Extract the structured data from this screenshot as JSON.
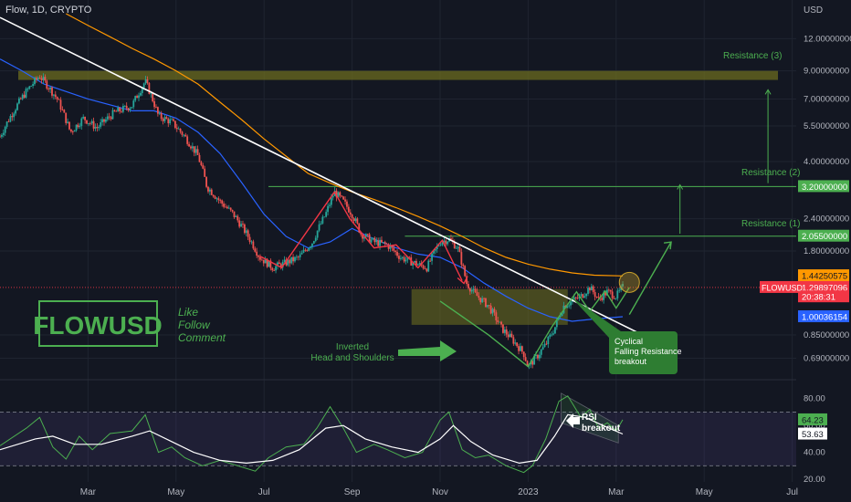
{
  "header": {
    "symbol_info": "Flow, 1D, CRYPTO",
    "currency": "USD"
  },
  "watermark": "FLOWUSD",
  "cta": [
    "Like",
    "Follow",
    "Comment"
  ],
  "annotations": {
    "resistance_3": "Resistance (3)",
    "resistance_2": "Resistance (2)",
    "resistance_1": "Resistance (1)",
    "ihs": [
      "Inverted",
      "Head and Shoulders"
    ],
    "cyclical": [
      "Cyclical",
      "Falling Resistance",
      "breakout"
    ],
    "rsi": [
      "RSI",
      "breakout"
    ]
  },
  "price_axis": {
    "ticks": [
      {
        "label": "12.00000000",
        "value": 12.0
      },
      {
        "label": "9.00000000",
        "value": 9.0
      },
      {
        "label": "7.00000000",
        "value": 7.0
      },
      {
        "label": "5.50000000",
        "value": 5.5
      },
      {
        "label": "4.00000000",
        "value": 4.0
      },
      {
        "label": "2.40000000",
        "value": 2.4
      },
      {
        "label": "1.80000000",
        "value": 1.8
      },
      {
        "label": "0.85000000",
        "value": 0.85
      },
      {
        "label": "0.69000000",
        "value": 0.69
      }
    ],
    "badges": [
      {
        "name": "badge-resistance-2",
        "text": "3.20000000",
        "value": 3.2,
        "color": "#4caf50",
        "fg": "#ffffff"
      },
      {
        "name": "badge-resistance-1",
        "text": "2.05500000",
        "value": 2.055,
        "color": "#4caf50",
        "fg": "#ffffff"
      },
      {
        "name": "badge-ma-orange",
        "text": "1.44250575",
        "value": 1.4425,
        "color": "#ff9800",
        "fg": "#131722"
      },
      {
        "name": "badge-last-price",
        "text": "1.29897096",
        "value": 1.299,
        "color": "#f23645",
        "fg": "#ffffff"
      },
      {
        "name": "badge-countdown",
        "text": "20:38:31",
        "value": 1.195,
        "color": "#f23645",
        "fg": "#ffffff"
      },
      {
        "name": "badge-ma-blue",
        "text": "1.00036154",
        "value": 1.0,
        "color": "#2962ff",
        "fg": "#ffffff"
      }
    ],
    "symbol_tag": "FLOWUSD"
  },
  "rsi_axis": {
    "ticks": [
      {
        "label": "80.00",
        "value": 80
      },
      {
        "label": "60.00",
        "value": 60
      },
      {
        "label": "40.00",
        "value": 40
      },
      {
        "label": "20.00",
        "value": 20
      }
    ],
    "badges": [
      {
        "text": "64.23",
        "value": 64.23,
        "color": "#4caf50",
        "fg": "#131722"
      },
      {
        "text": "53.63",
        "value": 53.63,
        "color": "#ffffff",
        "fg": "#131722"
      }
    ]
  },
  "time_axis": [
    {
      "label": "Mar",
      "month": 2
    },
    {
      "label": "May",
      "month": 4
    },
    {
      "label": "Jul",
      "month": 6
    },
    {
      "label": "Sep",
      "month": 8
    },
    {
      "label": "Nov",
      "month": 10
    },
    {
      "label": "2023",
      "month": 12
    },
    {
      "label": "Mar",
      "month": 14
    },
    {
      "label": "May",
      "month": 16
    },
    {
      "label": "Jul",
      "month": 18
    }
  ],
  "colors": {
    "bg": "#131722",
    "up": "#26a69a",
    "down": "#ef5350",
    "ma_blue": "#2962ff",
    "ma_orange": "#ff9800",
    "accent_green": "#4caf50",
    "trendline": "#ffffff"
  },
  "chart_data": [
    {
      "type": "candlestick",
      "symbol": "FLOWUSD",
      "timeframe": "1D",
      "scale": "log",
      "ylim": [
        0.5,
        15
      ],
      "price_path": [
        [
          0.0,
          5.0
        ],
        [
          0.6,
          7.5
        ],
        [
          0.9,
          8.6
        ],
        [
          1.3,
          7.0
        ],
        [
          1.6,
          5.2
        ],
        [
          1.9,
          5.9
        ],
        [
          2.2,
          5.4
        ],
        [
          2.6,
          6.2
        ],
        [
          3.0,
          6.6
        ],
        [
          3.3,
          8.2
        ],
        [
          3.6,
          6.0
        ],
        [
          3.9,
          5.7
        ],
        [
          4.2,
          5.0
        ],
        [
          4.5,
          4.2
        ],
        [
          4.7,
          3.2
        ],
        [
          5.0,
          2.8
        ],
        [
          5.3,
          2.5
        ],
        [
          5.6,
          2.1
        ],
        [
          5.9,
          1.7
        ],
        [
          6.2,
          1.55
        ],
        [
          6.5,
          1.62
        ],
        [
          6.8,
          1.7
        ],
        [
          7.1,
          1.95
        ],
        [
          7.4,
          2.5
        ],
        [
          7.6,
          3.05
        ],
        [
          7.8,
          2.8
        ],
        [
          8.0,
          2.5
        ],
        [
          8.2,
          2.1
        ],
        [
          8.5,
          1.95
        ],
        [
          8.8,
          1.9
        ],
        [
          9.1,
          1.7
        ],
        [
          9.4,
          1.62
        ],
        [
          9.7,
          1.55
        ],
        [
          10.0,
          1.95
        ],
        [
          10.2,
          2.0
        ],
        [
          10.4,
          1.85
        ],
        [
          10.6,
          1.35
        ],
        [
          10.8,
          1.22
        ],
        [
          11.1,
          1.1
        ],
        [
          11.4,
          0.9
        ],
        [
          11.6,
          0.83
        ],
        [
          11.9,
          0.72
        ],
        [
          12.0,
          0.64
        ],
        [
          12.2,
          0.7
        ],
        [
          12.4,
          0.78
        ],
        [
          12.6,
          0.9
        ],
        [
          12.8,
          1.1
        ],
        [
          13.0,
          1.15
        ],
        [
          13.2,
          1.2
        ],
        [
          13.4,
          1.3
        ],
        [
          13.6,
          1.17
        ],
        [
          13.8,
          1.25
        ],
        [
          14.0,
          1.2
        ],
        [
          14.15,
          1.3
        ]
      ],
      "moving_averages": [
        {
          "color": "#2962ff",
          "points": [
            [
              0.0,
              10.0
            ],
            [
              0.5,
              9.0
            ],
            [
              1.0,
              8.0
            ],
            [
              2.0,
              7.0
            ],
            [
              3.0,
              6.3
            ],
            [
              3.5,
              6.3
            ],
            [
              4.0,
              5.9
            ],
            [
              4.5,
              5.2
            ],
            [
              5.0,
              4.3
            ],
            [
              5.5,
              3.3
            ],
            [
              6.0,
              2.5
            ],
            [
              6.5,
              2.05
            ],
            [
              7.0,
              1.85
            ],
            [
              7.5,
              1.95
            ],
            [
              8.0,
              2.2
            ],
            [
              8.5,
              2.0
            ],
            [
              9.0,
              1.85
            ],
            [
              9.5,
              1.75
            ],
            [
              10.0,
              1.7
            ],
            [
              10.5,
              1.55
            ],
            [
              11.0,
              1.35
            ],
            [
              11.5,
              1.2
            ],
            [
              12.0,
              1.08
            ],
            [
              12.5,
              1.0
            ],
            [
              13.0,
              0.96
            ],
            [
              13.5,
              0.98
            ],
            [
              14.15,
              1.0
            ]
          ]
        },
        {
          "color": "#ff9800",
          "points": [
            [
              1.5,
              15.0
            ],
            [
              2.0,
              13.5
            ],
            [
              2.5,
              12.2
            ],
            [
              3.0,
              11.0
            ],
            [
              3.5,
              10.0
            ],
            [
              4.0,
              9.0
            ],
            [
              4.5,
              8.0
            ],
            [
              5.0,
              6.8
            ],
            [
              5.5,
              5.8
            ],
            [
              6.0,
              4.9
            ],
            [
              6.5,
              4.2
            ],
            [
              7.0,
              3.6
            ],
            [
              7.5,
              3.3
            ],
            [
              8.0,
              3.05
            ],
            [
              8.5,
              2.85
            ],
            [
              9.0,
              2.65
            ],
            [
              9.5,
              2.45
            ],
            [
              10.0,
              2.25
            ],
            [
              10.5,
              2.05
            ],
            [
              11.0,
              1.85
            ],
            [
              11.5,
              1.7
            ],
            [
              12.0,
              1.6
            ],
            [
              12.5,
              1.53
            ],
            [
              13.0,
              1.48
            ],
            [
              13.5,
              1.45
            ],
            [
              14.15,
              1.44
            ]
          ]
        }
      ],
      "trendline": [
        [
          0.0,
          14.5
        ],
        [
          14.6,
          0.85
        ]
      ],
      "resistance_levels": [
        {
          "label": "Resistance (3)",
          "low": 8.3,
          "high": 9.0
        },
        {
          "label": "Resistance (2)",
          "value": 3.2
        },
        {
          "label": "Resistance (1)",
          "value": 2.055
        }
      ],
      "last_price": 1.29897096
    },
    {
      "type": "line",
      "name": "RSI",
      "ylim": [
        18,
        90
      ],
      "bands": [
        30,
        70
      ],
      "rsi": [
        [
          0.0,
          45
        ],
        [
          0.6,
          58
        ],
        [
          0.9,
          66
        ],
        [
          1.2,
          44
        ],
        [
          1.5,
          35
        ],
        [
          1.8,
          52
        ],
        [
          2.1,
          42
        ],
        [
          2.5,
          54
        ],
        [
          3.0,
          56
        ],
        [
          3.3,
          68
        ],
        [
          3.6,
          40
        ],
        [
          3.9,
          44
        ],
        [
          4.2,
          36
        ],
        [
          4.6,
          30
        ],
        [
          5.0,
          34
        ],
        [
          5.4,
          30
        ],
        [
          5.8,
          26
        ],
        [
          6.1,
          36
        ],
        [
          6.5,
          44
        ],
        [
          6.9,
          46
        ],
        [
          7.2,
          58
        ],
        [
          7.5,
          74
        ],
        [
          7.8,
          58
        ],
        [
          8.1,
          40
        ],
        [
          8.5,
          46
        ],
        [
          8.8,
          42
        ],
        [
          9.2,
          36
        ],
        [
          9.6,
          40
        ],
        [
          10.0,
          64
        ],
        [
          10.2,
          70
        ],
        [
          10.5,
          42
        ],
        [
          10.8,
          36
        ],
        [
          11.1,
          38
        ],
        [
          11.5,
          30
        ],
        [
          11.9,
          25
        ],
        [
          12.1,
          30
        ],
        [
          12.4,
          50
        ],
        [
          12.7,
          78
        ],
        [
          12.9,
          82
        ],
        [
          13.2,
          66
        ],
        [
          13.4,
          72
        ],
        [
          13.6,
          58
        ],
        [
          13.8,
          62
        ],
        [
          14.0,
          56
        ],
        [
          14.15,
          64.23
        ]
      ],
      "rsi_ma": [
        [
          0.0,
          42
        ],
        [
          0.8,
          50
        ],
        [
          1.2,
          52
        ],
        [
          1.7,
          46
        ],
        [
          2.3,
          46
        ],
        [
          3.0,
          52
        ],
        [
          3.4,
          56
        ],
        [
          3.9,
          48
        ],
        [
          4.4,
          40
        ],
        [
          5.0,
          34
        ],
        [
          5.6,
          32
        ],
        [
          6.2,
          34
        ],
        [
          6.8,
          42
        ],
        [
          7.4,
          58
        ],
        [
          7.8,
          60
        ],
        [
          8.3,
          50
        ],
        [
          8.9,
          44
        ],
        [
          9.5,
          40
        ],
        [
          10.0,
          50
        ],
        [
          10.3,
          60
        ],
        [
          10.7,
          48
        ],
        [
          11.2,
          38
        ],
        [
          11.8,
          32
        ],
        [
          12.2,
          34
        ],
        [
          12.6,
          52
        ],
        [
          12.9,
          68
        ],
        [
          13.3,
          66
        ],
        [
          13.7,
          60
        ],
        [
          14.15,
          53.63
        ]
      ],
      "last_rsi": 64.23,
      "last_rsi_ma": 53.63
    }
  ]
}
